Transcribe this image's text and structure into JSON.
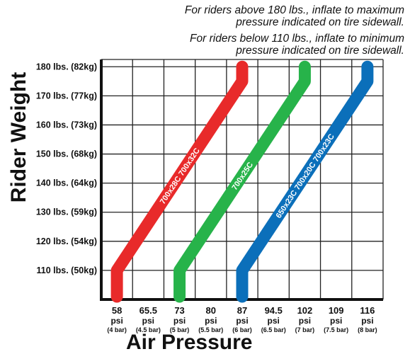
{
  "notes": [
    "For riders above 180 lbs., inflate to maximum",
    "pressure indicated on tire sidewall.",
    "For riders below 110 lbs., inflate to minimum",
    "pressure indicated on tire sidewall."
  ],
  "chart_data": {
    "type": "line",
    "xlabel": "Air Pressure",
    "ylabel": "Rider Weight",
    "x_ticks": [
      {
        "value": 58,
        "psi": "58",
        "unit": "psi",
        "bar": "(4 bar)"
      },
      {
        "value": 65.5,
        "psi": "65.5",
        "unit": "psi",
        "bar": "(4.5 bar)"
      },
      {
        "value": 73,
        "psi": "73",
        "unit": "psi",
        "bar": "(5 bar)"
      },
      {
        "value": 80,
        "psi": "80",
        "unit": "psi",
        "bar": "(5.5 bar)"
      },
      {
        "value": 87,
        "psi": "87",
        "unit": "psi",
        "bar": "(6 bar)"
      },
      {
        "value": 94.5,
        "psi": "94.5",
        "unit": "psi",
        "bar": "(6.5 bar)"
      },
      {
        "value": 102,
        "psi": "102",
        "unit": "psi",
        "bar": "(7 bar)"
      },
      {
        "value": 109,
        "psi": "109",
        "unit": "psi",
        "bar": "(7.5 bar)"
      },
      {
        "value": 116,
        "psi": "116",
        "unit": "psi",
        "bar": "(8 bar)"
      }
    ],
    "y_ticks": [
      {
        "value": 110,
        "label": "110 lbs. (50kg)"
      },
      {
        "value": 120,
        "label": "120 lbs. (54kg)"
      },
      {
        "value": 130,
        "label": "130 lbs. (59kg)"
      },
      {
        "value": 140,
        "label": "140 lbs. (64kg)"
      },
      {
        "value": 150,
        "label": "150 lbs. (68kg)"
      },
      {
        "value": 160,
        "label": "160 lbs. (73kg)"
      },
      {
        "value": 170,
        "label": "170 lbs. (77kg)"
      },
      {
        "value": 180,
        "label": "180 lbs. (82kg)"
      }
    ],
    "xlim": [
      58,
      116
    ],
    "ylim": [
      100,
      180
    ],
    "grid": true,
    "series": [
      {
        "name": "700x28C 700x32C",
        "color": "#e82a2a",
        "points": [
          [
            58,
            100
          ],
          [
            58,
            110
          ],
          [
            87,
            175
          ],
          [
            87,
            180
          ]
        ]
      },
      {
        "name": "700x25C",
        "color": "#27b34a",
        "points": [
          [
            73,
            100
          ],
          [
            73,
            110
          ],
          [
            102,
            175
          ],
          [
            102,
            180
          ]
        ]
      },
      {
        "name": "650x23C 700x20C 700x23C",
        "color": "#0b6fba",
        "points": [
          [
            87,
            100
          ],
          [
            87,
            110
          ],
          [
            116,
            175
          ],
          [
            116,
            180
          ]
        ]
      }
    ]
  }
}
